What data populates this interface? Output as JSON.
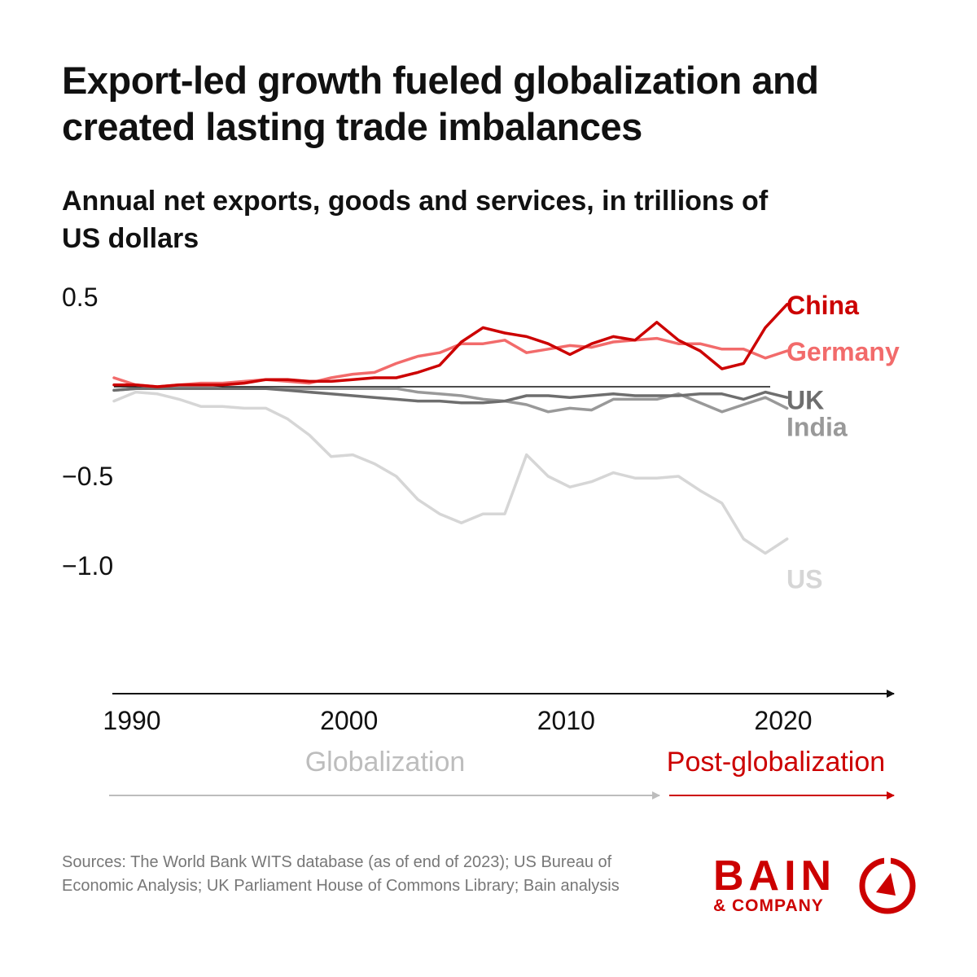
{
  "title": "Export-led growth fueled globalization and created lasting trade imbalances",
  "subtitle": "Annual net exports, goods and services, in trillions of US dollars",
  "sources": "Sources: The World Bank WITS database (as of end of 2023); US Bureau of Economic Analysis; UK Parliament House of Commons Library; Bain analysis",
  "logo": {
    "word": "BAIN",
    "sub": "& COMPANY",
    "mark": "bain-compass-icon",
    "color": "#cc0000"
  },
  "phases": [
    {
      "label": "Globalization",
      "color": "#bdbdbd",
      "start": 1990,
      "end": 2016
    },
    {
      "label": "Post-globalization",
      "color": "#cc0000",
      "start": 2016,
      "end": 2026
    }
  ],
  "chart_data": {
    "type": "line",
    "xlabel": "",
    "ylabel": "",
    "xlim": [
      1990,
      2026
    ],
    "ylim": [
      -1.3,
      0.65
    ],
    "x_ticks": [
      {
        "value": 1990,
        "label": "1990"
      },
      {
        "value": 2000,
        "label": "2000"
      },
      {
        "value": 2010,
        "label": "2010"
      },
      {
        "value": 2020,
        "label": "2020"
      }
    ],
    "y_ticks": [
      {
        "value": 0.5,
        "label": "0.5"
      },
      {
        "value": -0.5,
        "label": "−0.5"
      },
      {
        "value": -1.0,
        "label": "−1.0"
      }
    ],
    "grid": false,
    "zero_line": true,
    "x": [
      1990,
      1991,
      1992,
      1993,
      1994,
      1995,
      1996,
      1997,
      1998,
      1999,
      2000,
      2001,
      2002,
      2003,
      2004,
      2005,
      2006,
      2007,
      2008,
      2009,
      2010,
      2011,
      2012,
      2013,
      2014,
      2015,
      2016,
      2017,
      2018,
      2019,
      2020,
      2021
    ],
    "series": [
      {
        "name": "US",
        "color": "#d6d6d6",
        "label_y": -1.07,
        "values": [
          -0.08,
          -0.03,
          -0.04,
          -0.07,
          -0.11,
          -0.11,
          -0.12,
          -0.12,
          -0.18,
          -0.27,
          -0.39,
          -0.38,
          -0.43,
          -0.5,
          -0.63,
          -0.71,
          -0.76,
          -0.71,
          -0.71,
          -0.38,
          -0.5,
          -0.56,
          -0.53,
          -0.48,
          -0.51,
          -0.51,
          -0.5,
          -0.58,
          -0.65,
          -0.85,
          -0.93,
          -0.85
        ]
      },
      {
        "name": "India",
        "color": "#999999",
        "label_y": -0.22,
        "values": [
          -0.02,
          -0.01,
          -0.01,
          0.0,
          0.0,
          -0.01,
          -0.01,
          -0.01,
          -0.01,
          -0.01,
          -0.01,
          -0.01,
          -0.01,
          -0.01,
          -0.03,
          -0.04,
          -0.05,
          -0.07,
          -0.08,
          -0.1,
          -0.14,
          -0.12,
          -0.13,
          -0.07,
          -0.07,
          -0.07,
          -0.04,
          -0.09,
          -0.14,
          -0.1,
          -0.06,
          -0.12
        ]
      },
      {
        "name": "UK",
        "color": "#6e6e6e",
        "label_y": -0.07,
        "values": [
          -0.02,
          -0.01,
          -0.01,
          -0.01,
          -0.01,
          -0.01,
          -0.01,
          -0.01,
          -0.02,
          -0.03,
          -0.04,
          -0.05,
          -0.06,
          -0.07,
          -0.08,
          -0.08,
          -0.09,
          -0.09,
          -0.08,
          -0.05,
          -0.05,
          -0.06,
          -0.05,
          -0.04,
          -0.05,
          -0.05,
          -0.05,
          -0.04,
          -0.04,
          -0.07,
          -0.03,
          -0.06
        ]
      },
      {
        "name": "Germany",
        "color": "#f26b6b",
        "label_y": 0.2,
        "values": [
          0.05,
          0.01,
          0.0,
          0.01,
          0.02,
          0.02,
          0.03,
          0.04,
          0.03,
          0.02,
          0.05,
          0.07,
          0.08,
          0.13,
          0.17,
          0.19,
          0.24,
          0.24,
          0.26,
          0.19,
          0.21,
          0.23,
          0.22,
          0.25,
          0.26,
          0.27,
          0.24,
          0.24,
          0.21,
          0.21,
          0.16,
          0.2
        ]
      },
      {
        "name": "China",
        "color": "#cc0000",
        "label_y": 0.46,
        "values": [
          0.01,
          0.01,
          0.0,
          0.01,
          0.01,
          0.01,
          0.02,
          0.04,
          0.04,
          0.03,
          0.03,
          0.04,
          0.05,
          0.05,
          0.08,
          0.12,
          0.25,
          0.33,
          0.3,
          0.28,
          0.24,
          0.18,
          0.24,
          0.28,
          0.26,
          0.36,
          0.26,
          0.2,
          0.1,
          0.13,
          0.33,
          0.46
        ]
      }
    ]
  }
}
